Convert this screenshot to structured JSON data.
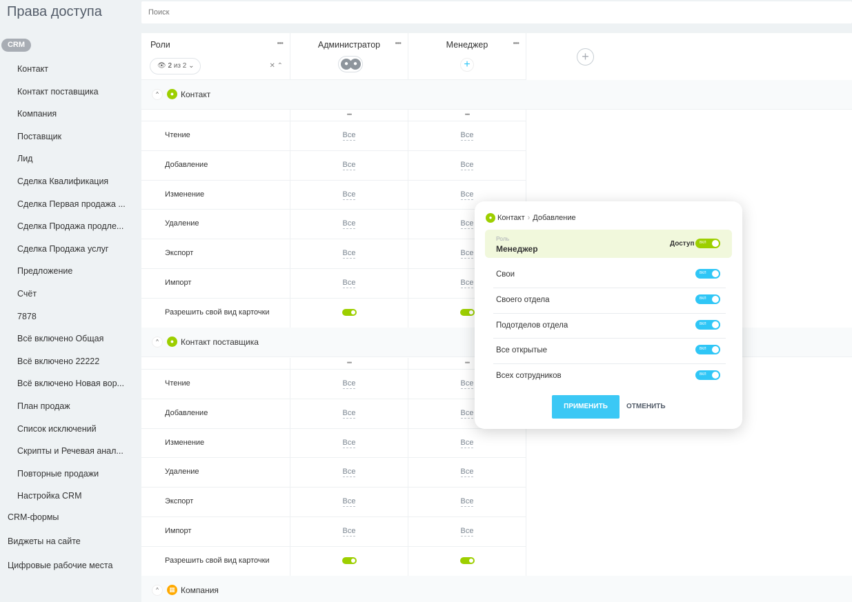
{
  "app": {
    "title": "Права доступа"
  },
  "search": {
    "placeholder": "Поиск"
  },
  "sidebar": {
    "crm_label": "CRM",
    "items": [
      "Контакт",
      "Контакт поставщика",
      "Компания",
      "Поставщик",
      "Лид",
      "Сделка Квалификация",
      "Сделка Первая продажа ...",
      "Сделка Продажа продле...",
      "Сделка Продажа услуг",
      "Предложение",
      "Счёт",
      "7878",
      "Всё включено Общая",
      "Всё включено 22222",
      "Всё включено Новая вор...",
      "План продаж",
      "Список исключений",
      "Скрипты и Речевая анал...",
      "Повторные продажи",
      "Настройка CRM"
    ],
    "bottom_items": [
      "CRM-формы",
      "Виджеты на сайте",
      "Цифровые рабочие места"
    ]
  },
  "header": {
    "roles_title": "Роли",
    "counter_current": "2",
    "counter_rest": "из 2",
    "roles": [
      {
        "name": "Администратор"
      },
      {
        "name": "Менеджер"
      }
    ]
  },
  "sections": [
    {
      "title": "Контакт",
      "icon": "contact-icon",
      "icon_color": "#9dcf00"
    },
    {
      "title": "Контакт поставщика",
      "icon": "contact-icon",
      "icon_color": "#9dcf00"
    },
    {
      "title": "Компания",
      "icon": "company-icon",
      "icon_color": "#ffa900"
    }
  ],
  "permissions": [
    {
      "label": "Чтение",
      "admin": "Все",
      "manager": "Все"
    },
    {
      "label": "Добавление",
      "admin": "Все",
      "manager": "Все"
    },
    {
      "label": "Изменение",
      "admin": "Все",
      "manager": "Все"
    },
    {
      "label": "Удаление",
      "admin": "Все",
      "manager": "Все"
    },
    {
      "label": "Экспорт",
      "admin": "Все",
      "manager": "Все"
    },
    {
      "label": "Импорт",
      "admin": "Все",
      "manager": "Все"
    },
    {
      "label": "Разрешить свой вид карточки",
      "admin": "toggle-on",
      "manager": "toggle-on"
    }
  ],
  "popup": {
    "breadcrumb": [
      "Контакт",
      "Добавление"
    ],
    "role_caption": "Роль",
    "role_name": "Менеджер",
    "access_label": "Доступ",
    "toggle_text": "ВКЛ",
    "options": [
      "Свои",
      "Своего отдела",
      "Подотделов отдела",
      "Все открытые",
      "Всех сотрудников"
    ],
    "apply_label": "ПРИМЕНИТЬ",
    "cancel_label": "ОТМЕНИТЬ"
  },
  "colors": {
    "accent_green": "#9dcf00",
    "accent_blue": "#2fc6f6",
    "company_orange": "#ffa900"
  }
}
